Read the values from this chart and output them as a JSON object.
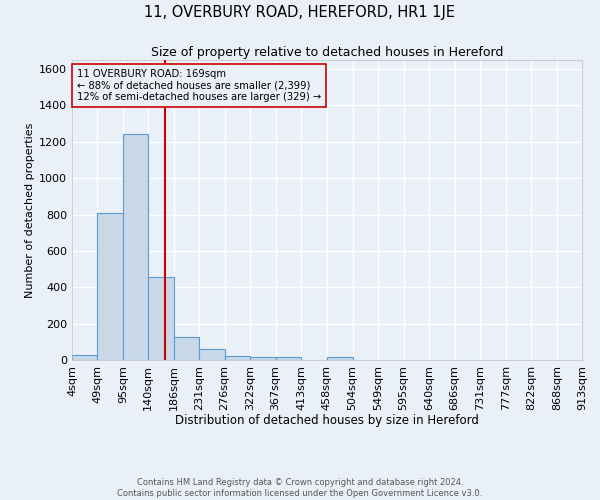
{
  "title": "11, OVERBURY ROAD, HEREFORD, HR1 1JE",
  "subtitle": "Size of property relative to detached houses in Hereford",
  "xlabel": "Distribution of detached houses by size in Hereford",
  "ylabel": "Number of detached properties",
  "bin_edges": [
    4,
    49,
    95,
    140,
    186,
    231,
    276,
    322,
    367,
    413,
    458,
    504,
    549,
    595,
    640,
    686,
    731,
    777,
    822,
    868,
    913
  ],
  "bin_labels": [
    "4sqm",
    "49sqm",
    "95sqm",
    "140sqm",
    "186sqm",
    "231sqm",
    "276sqm",
    "322sqm",
    "367sqm",
    "413sqm",
    "458sqm",
    "504sqm",
    "549sqm",
    "595sqm",
    "640sqm",
    "686sqm",
    "731sqm",
    "777sqm",
    "822sqm",
    "868sqm",
    "913sqm"
  ],
  "bar_heights": [
    25,
    810,
    1245,
    455,
    125,
    60,
    20,
    18,
    15,
    0,
    15,
    0,
    0,
    0,
    0,
    0,
    0,
    0,
    0,
    0
  ],
  "bar_color": "#c9d9e8",
  "bar_edgecolor": "#5b9bd5",
  "property_size": 169,
  "vline_color": "#cc0000",
  "annotation_line1": "11 OVERBURY ROAD: 169sqm",
  "annotation_line2": "← 88% of detached houses are smaller (2,399)",
  "annotation_line3": "12% of semi-detached houses are larger (329) →",
  "annotation_box_edgecolor": "#cc0000",
  "ylim": [
    0,
    1650
  ],
  "yticks": [
    0,
    200,
    400,
    600,
    800,
    1000,
    1200,
    1400,
    1600
  ],
  "bg_color": "#eaf0f8",
  "grid_color": "#ffffff",
  "footer_line1": "Contains HM Land Registry data © Crown copyright and database right 2024.",
  "footer_line2": "Contains public sector information licensed under the Open Government Licence v3.0."
}
